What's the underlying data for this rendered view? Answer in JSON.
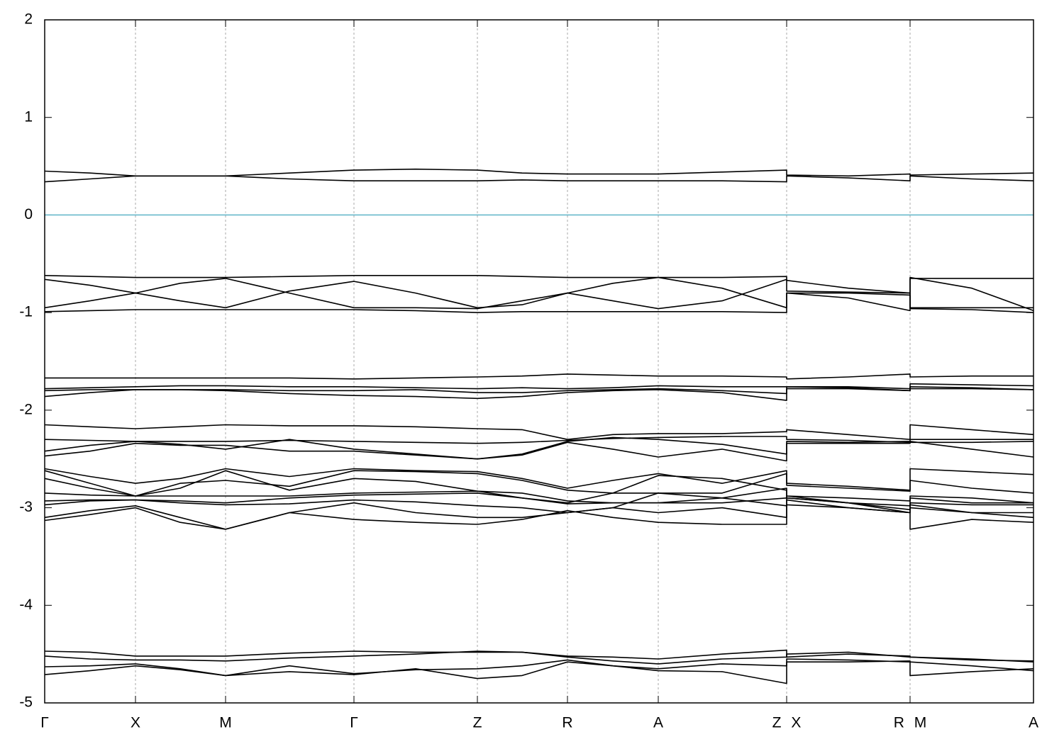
{
  "chart_data": {
    "type": "line",
    "x": [
      0,
      64,
      128,
      191,
      255,
      345,
      436,
      523,
      610,
      673,
      737,
      801,
      865,
      955,
      1046,
      1046,
      1133,
      1220,
      1220,
      1307,
      1394
    ],
    "xlim": [
      0,
      1394
    ],
    "xticks": [
      {
        "value": 0,
        "label": "Γ"
      },
      {
        "value": 128,
        "label": "X"
      },
      {
        "value": 255,
        "label": "M"
      },
      {
        "value": 436,
        "label": "Γ"
      },
      {
        "value": 610,
        "label": "Z"
      },
      {
        "value": 737,
        "label": "R"
      },
      {
        "value": 865,
        "label": "A"
      },
      {
        "value": 1046,
        "label": "Z X"
      },
      {
        "value": 1220,
        "label": "R M"
      },
      {
        "value": 1394,
        "label": "A"
      }
    ],
    "ylim": [
      -5,
      2
    ],
    "yticks": [
      -5,
      -4,
      -3,
      -2,
      -1,
      0,
      1,
      2
    ],
    "xgrid": true,
    "hline": 0,
    "hline_color": "#5fb4c8",
    "color": "#000000",
    "series": [
      {
        "values": [
          0.45,
          0.43,
          0.4,
          0.4,
          0.4,
          0.43,
          0.46,
          0.47,
          0.46,
          0.43,
          0.42,
          0.42,
          0.42,
          0.44,
          0.46,
          0.41,
          0.4,
          0.42,
          0.41,
          0.42,
          0.43
        ]
      },
      {
        "values": [
          0.34,
          0.37,
          0.4,
          0.4,
          0.4,
          0.37,
          0.35,
          0.35,
          0.35,
          0.36,
          0.35,
          0.35,
          0.35,
          0.35,
          0.34,
          0.4,
          0.38,
          0.35,
          0.4,
          0.37,
          0.35
        ]
      },
      {
        "values": [
          -0.62,
          -0.63,
          -0.64,
          -0.64,
          -0.64,
          -0.63,
          -0.62,
          -0.62,
          -0.62,
          -0.63,
          -0.64,
          -0.64,
          -0.64,
          -0.64,
          -0.63,
          -0.78,
          -0.79,
          -0.8,
          -0.65,
          -0.65,
          -0.65
        ]
      },
      {
        "values": [
          -0.66,
          -0.72,
          -0.8,
          -0.88,
          -0.95,
          -0.78,
          -0.68,
          -0.8,
          -0.95,
          -0.92,
          -0.8,
          -0.7,
          -0.64,
          -0.75,
          -0.95,
          -0.8,
          -0.85,
          -0.98,
          -0.64,
          -0.75,
          -0.98
        ]
      },
      {
        "values": [
          -0.95,
          -0.88,
          -0.8,
          -0.7,
          -0.65,
          -0.8,
          -0.95,
          -0.95,
          -0.96,
          -0.88,
          -0.8,
          -0.88,
          -0.96,
          -0.88,
          -0.66,
          -0.67,
          -0.75,
          -0.8,
          -0.95,
          -0.95,
          -0.95
        ]
      },
      {
        "values": [
          -0.99,
          -0.98,
          -0.97,
          -0.97,
          -0.97,
          -0.97,
          -0.97,
          -0.98,
          -1.0,
          -0.99,
          -0.99,
          -0.99,
          -0.99,
          -0.99,
          -1.0,
          -0.8,
          -0.8,
          -0.82,
          -0.96,
          -0.97,
          -1.0
        ]
      },
      {
        "values": [
          -1.67,
          -1.67,
          -1.67,
          -1.67,
          -1.67,
          -1.67,
          -1.68,
          -1.67,
          -1.66,
          -1.65,
          -1.63,
          -1.64,
          -1.65,
          -1.65,
          -1.66,
          -1.68,
          -1.66,
          -1.63,
          -1.66,
          -1.65,
          -1.65
        ]
      },
      {
        "values": [
          -1.78,
          -1.77,
          -1.76,
          -1.75,
          -1.75,
          -1.76,
          -1.76,
          -1.77,
          -1.78,
          -1.77,
          -1.78,
          -1.77,
          -1.75,
          -1.76,
          -1.76,
          -1.76,
          -1.76,
          -1.78,
          -1.73,
          -1.74,
          -1.75
        ]
      },
      {
        "values": [
          -1.8,
          -1.79,
          -1.79,
          -1.79,
          -1.79,
          -1.8,
          -1.8,
          -1.79,
          -1.82,
          -1.82,
          -1.8,
          -1.79,
          -1.78,
          -1.8,
          -1.83,
          -1.76,
          -1.77,
          -1.8,
          -1.76,
          -1.77,
          -1.79
        ]
      },
      {
        "values": [
          -1.86,
          -1.82,
          -1.79,
          -1.79,
          -1.8,
          -1.83,
          -1.85,
          -1.86,
          -1.88,
          -1.86,
          -1.82,
          -1.8,
          -1.79,
          -1.82,
          -1.9,
          -1.78,
          -1.78,
          -1.8,
          -1.78,
          -1.78,
          -1.79
        ]
      },
      {
        "values": [
          -2.15,
          -2.17,
          -2.19,
          -2.17,
          -2.15,
          -2.16,
          -2.16,
          -2.17,
          -2.19,
          -2.2,
          -2.3,
          -2.25,
          -2.24,
          -2.24,
          -2.22,
          -2.2,
          -2.25,
          -2.3,
          -2.15,
          -2.2,
          -2.25
        ]
      },
      {
        "values": [
          -2.3,
          -2.31,
          -2.32,
          -2.32,
          -2.32,
          -2.31,
          -2.32,
          -2.33,
          -2.34,
          -2.33,
          -2.31,
          -2.29,
          -2.28,
          -2.27,
          -2.27,
          -2.3,
          -2.31,
          -2.33,
          -2.3,
          -2.3,
          -2.3
        ]
      },
      {
        "values": [
          -2.42,
          -2.36,
          -2.32,
          -2.35,
          -2.4,
          -2.3,
          -2.4,
          -2.45,
          -2.5,
          -2.45,
          -2.32,
          -2.28,
          -2.3,
          -2.35,
          -2.45,
          -2.32,
          -2.33,
          -2.32,
          -2.32,
          -2.4,
          -2.48
        ]
      },
      {
        "values": [
          -2.47,
          -2.42,
          -2.34,
          -2.36,
          -2.36,
          -2.42,
          -2.42,
          -2.46,
          -2.5,
          -2.46,
          -2.33,
          -2.4,
          -2.48,
          -2.4,
          -2.52,
          -2.34,
          -2.34,
          -2.34,
          -2.33,
          -2.33,
          -2.32
        ]
      },
      {
        "values": [
          -2.6,
          -2.68,
          -2.75,
          -2.7,
          -2.6,
          -2.68,
          -2.6,
          -2.62,
          -2.63,
          -2.7,
          -2.8,
          -2.72,
          -2.65,
          -2.75,
          -2.62,
          -2.75,
          -2.78,
          -2.82,
          -2.6,
          -2.63,
          -2.66
        ]
      },
      {
        "values": [
          -2.62,
          -2.75,
          -2.88,
          -2.75,
          -2.72,
          -2.78,
          -2.62,
          -2.63,
          -2.65,
          -2.72,
          -2.82,
          -2.85,
          -2.85,
          -2.85,
          -2.65,
          -2.77,
          -2.8,
          -2.83,
          -2.72,
          -2.8,
          -2.85
        ]
      },
      {
        "values": [
          -2.7,
          -2.8,
          -2.88,
          -2.8,
          -2.62,
          -2.82,
          -2.7,
          -2.73,
          -2.83,
          -2.9,
          -2.95,
          -2.85,
          -2.67,
          -2.7,
          -2.82,
          -2.88,
          -2.9,
          -2.93,
          -2.88,
          -2.9,
          -2.95
        ]
      },
      {
        "values": [
          -2.85,
          -2.87,
          -2.88,
          -2.88,
          -2.88,
          -2.88,
          -2.85,
          -2.84,
          -2.83,
          -2.85,
          -2.93,
          -2.95,
          -2.95,
          -2.9,
          -2.8,
          -2.9,
          -2.95,
          -2.98,
          -2.9,
          -2.95,
          -2.95
        ]
      },
      {
        "values": [
          -2.93,
          -2.92,
          -2.92,
          -2.93,
          -2.95,
          -2.9,
          -2.87,
          -2.86,
          -2.85,
          -2.9,
          -2.96,
          -2.95,
          -2.95,
          -2.95,
          -2.9,
          -2.9,
          -2.95,
          -3.02,
          -2.95,
          -2.97,
          -2.97
        ]
      },
      {
        "values": [
          -2.97,
          -2.93,
          -2.92,
          -2.95,
          -2.97,
          -2.96,
          -2.92,
          -2.94,
          -2.98,
          -3.0,
          -3.05,
          -3.0,
          -2.85,
          -2.9,
          -2.98,
          -2.97,
          -3.0,
          -3.05,
          -2.97,
          -3.05,
          -3.1
        ]
      },
      {
        "values": [
          -3.1,
          -3.03,
          -2.98,
          -3.1,
          -3.22,
          -3.05,
          -2.95,
          -3.05,
          -3.1,
          -3.1,
          -3.05,
          -3.0,
          -3.05,
          -3.0,
          -3.1,
          -2.92,
          -3.0,
          -3.05,
          -3.0,
          -3.05,
          -3.05
        ]
      },
      {
        "values": [
          -3.13,
          -3.07,
          -3.0,
          -3.15,
          -3.22,
          -3.05,
          -3.12,
          -3.15,
          -3.17,
          -3.12,
          -3.03,
          -3.1,
          -3.15,
          -3.17,
          -3.17,
          -2.88,
          -2.95,
          -3.05,
          -3.22,
          -3.12,
          -3.15
        ]
      },
      {
        "values": [
          -4.47,
          -4.48,
          -4.52,
          -4.52,
          -4.52,
          -4.49,
          -4.47,
          -4.48,
          -4.48,
          -4.48,
          -4.52,
          -4.53,
          -4.55,
          -4.5,
          -4.46,
          -4.53,
          -4.5,
          -4.52,
          -4.53,
          -4.56,
          -4.57
        ]
      },
      {
        "values": [
          -4.52,
          -4.55,
          -4.56,
          -4.56,
          -4.57,
          -4.54,
          -4.52,
          -4.5,
          -4.47,
          -4.48,
          -4.53,
          -4.57,
          -4.6,
          -4.55,
          -4.53,
          -4.5,
          -4.48,
          -4.53,
          -4.53,
          -4.55,
          -4.58
        ]
      },
      {
        "values": [
          -4.63,
          -4.62,
          -4.6,
          -4.65,
          -4.72,
          -4.62,
          -4.7,
          -4.66,
          -4.65,
          -4.62,
          -4.56,
          -4.62,
          -4.65,
          -4.6,
          -4.62,
          -4.55,
          -4.56,
          -4.58,
          -4.72,
          -4.68,
          -4.65
        ]
      },
      {
        "values": [
          -4.71,
          -4.67,
          -4.62,
          -4.66,
          -4.72,
          -4.68,
          -4.71,
          -4.65,
          -4.75,
          -4.72,
          -4.58,
          -4.62,
          -4.67,
          -4.68,
          -4.8,
          -4.58,
          -4.58,
          -4.57,
          -4.58,
          -4.62,
          -4.67
        ]
      }
    ]
  }
}
